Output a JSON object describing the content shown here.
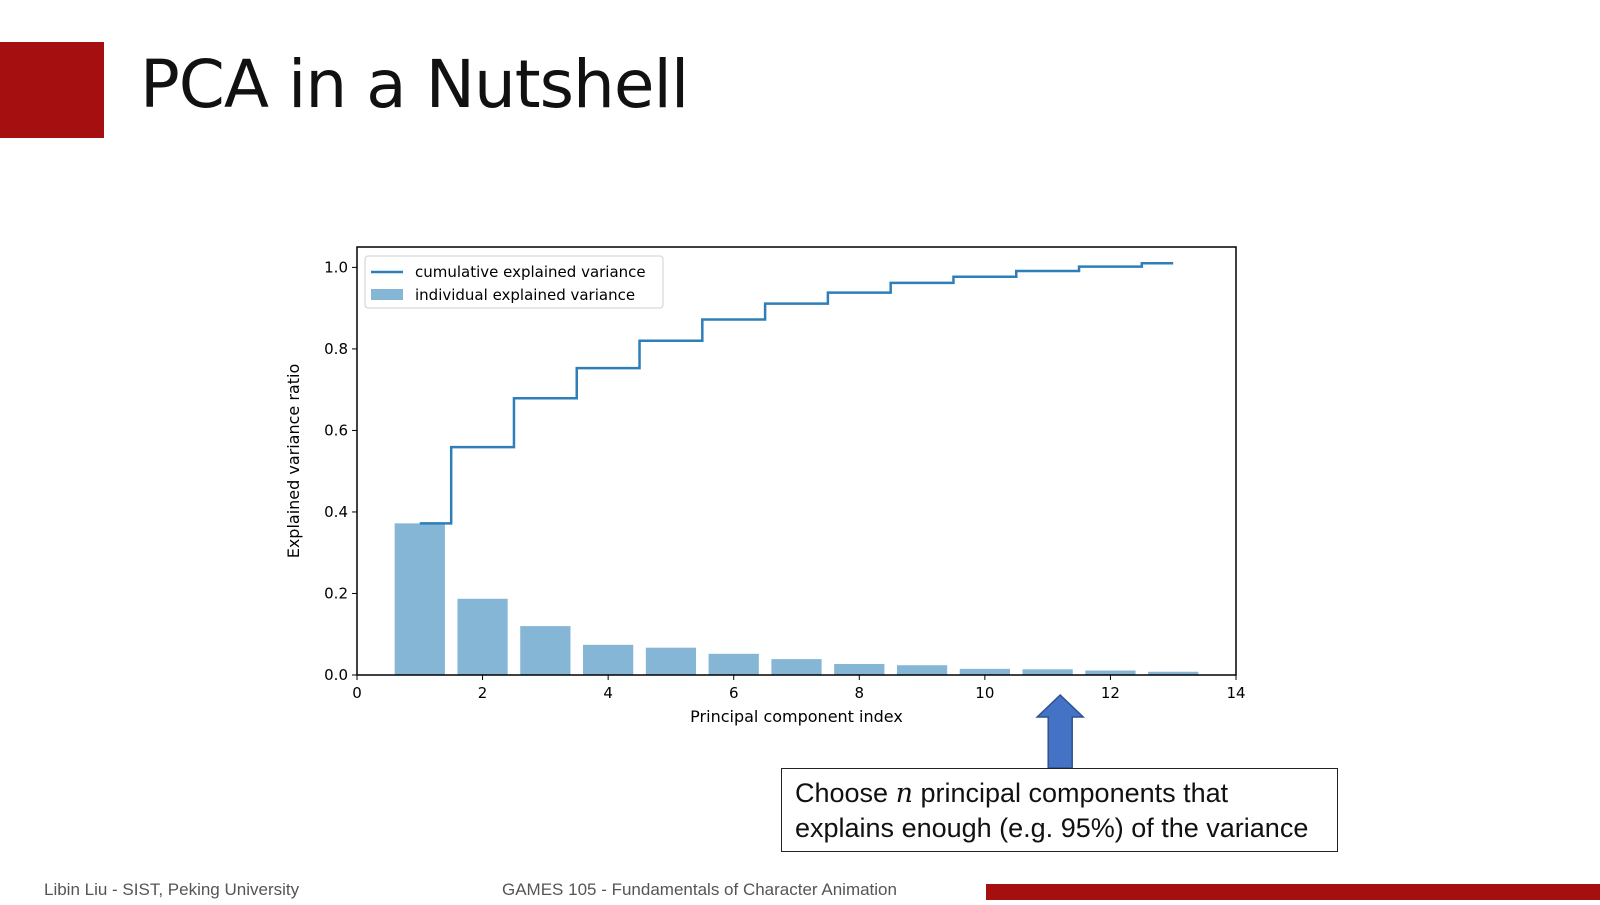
{
  "slide": {
    "title": "PCA in a Nutshell",
    "accent_color": "#A50F0F"
  },
  "callout": {
    "line1_before": "Choose ",
    "variable": "n",
    "line1_after": " principal components that",
    "line2": "explains enough (e.g. 95%) of the variance"
  },
  "footer": {
    "left": "Libin Liu - SIST, Peking University",
    "center": "GAMES 105 - Fundamentals of Character Animation"
  },
  "arrow_color": "#4472C4",
  "chart_data": {
    "type": "bar",
    "xlabel": "Principal component index",
    "ylabel": "Explained variance ratio",
    "xlim": [
      0,
      14
    ],
    "ylim": [
      0,
      1.05
    ],
    "xticks": [
      "0",
      "2",
      "4",
      "6",
      "8",
      "10",
      "12",
      "14"
    ],
    "yticks": [
      "0.0",
      "0.2",
      "0.4",
      "0.6",
      "0.8",
      "1.0"
    ],
    "x": [
      1,
      2,
      3,
      4,
      5,
      6,
      7,
      8,
      9,
      10,
      11,
      12,
      13
    ],
    "series": [
      {
        "name": "individual explained variance",
        "kind": "bar",
        "color": "#85B6D6",
        "values": [
          0.372,
          0.187,
          0.12,
          0.074,
          0.067,
          0.052,
          0.039,
          0.027,
          0.024,
          0.015,
          0.014,
          0.011,
          0.008
        ]
      },
      {
        "name": "cumulative explained variance",
        "kind": "step",
        "color": "#2E7EB8",
        "values": [
          0.372,
          0.559,
          0.679,
          0.753,
          0.82,
          0.872,
          0.911,
          0.938,
          0.962,
          0.977,
          0.991,
          1.002,
          1.01
        ]
      }
    ],
    "legend_position": "top-left"
  }
}
